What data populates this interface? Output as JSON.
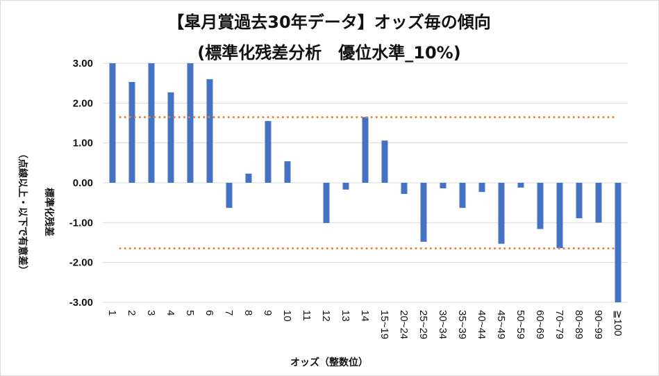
{
  "chart_data": {
    "type": "bar",
    "title": "【皐月賞過去30年データ】オッズ毎の傾向",
    "subtitle": "(標準化残差分析　優位水準_10%)",
    "xlabel": "オッズ（整数位）",
    "ylabel": "標準化残差",
    "ylabel_note": "（点線以上・以下で有意差）",
    "ylim": [
      -3,
      3
    ],
    "yticks": [
      3,
      2,
      1,
      0,
      -1,
      -2,
      -3
    ],
    "ytick_labels": [
      "3.00",
      "2.00",
      "1.00",
      "0.00",
      "-1.00",
      "-2.00",
      "-3.00"
    ],
    "grid": true,
    "categories": [
      "1",
      "2",
      "3",
      "4",
      "5",
      "6",
      "7",
      "8",
      "9",
      "10",
      "11",
      "12",
      "13",
      "14",
      "15~19",
      "20~24",
      "25~29",
      "30~34",
      "35~39",
      "40~44",
      "45~49",
      "50~59",
      "60~69",
      "70~79",
      "80~89",
      "90~99",
      "≧100"
    ],
    "values": [
      3.0,
      2.53,
      3.0,
      2.27,
      3.0,
      2.6,
      -0.63,
      0.23,
      1.55,
      0.54,
      0.0,
      -1.01,
      -0.17,
      1.65,
      1.06,
      -0.28,
      -1.48,
      -0.14,
      -0.63,
      -0.23,
      -1.53,
      -0.12,
      -1.16,
      -1.64,
      -0.89,
      -1.0,
      -3.0
    ],
    "threshold_lines": [
      1.645,
      -1.645
    ],
    "colors": {
      "bar": "#4472C4",
      "threshold": "#ED7D31",
      "grid": "#d9d9d9"
    }
  }
}
